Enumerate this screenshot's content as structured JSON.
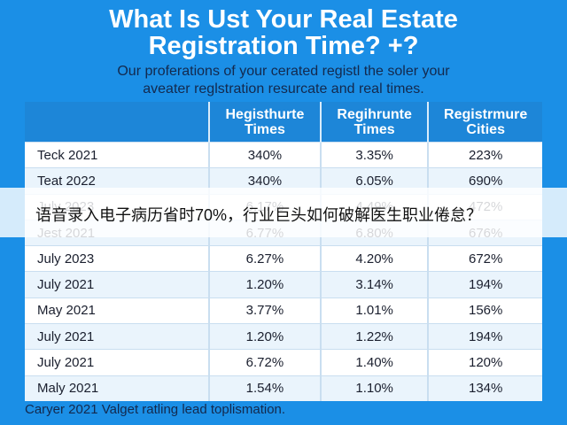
{
  "header": {
    "title": [
      "What Is Ust Your Real Estate",
      "Registration Time? +?"
    ],
    "subtitle": [
      "Our proferations of your cerated registl the soler your",
      "aveater reglstration resurcate and real times."
    ]
  },
  "table": {
    "columns": [
      "",
      "Hegisthurte Times",
      "Regihrunte Times",
      "Registrmure Cities"
    ],
    "rows": [
      [
        "Teck 2021",
        "340%",
        "3.35%",
        "223%"
      ],
      [
        "Teat 2022",
        "340%",
        "6.05%",
        "690%"
      ],
      [
        "July 2023",
        "6.17%",
        "4.49%",
        "472%"
      ],
      [
        "Jest 2021",
        "6.77%",
        "6.80%",
        "676%"
      ],
      [
        "July 2023",
        "6.27%",
        "4.20%",
        "672%"
      ],
      [
        "July 2021",
        "1.20%",
        "3.14%",
        "194%"
      ],
      [
        "May 2021",
        "3.77%",
        "1.01%",
        "156%"
      ],
      [
        "July 2021",
        "1.20%",
        "1.22%",
        "194%"
      ],
      [
        "July 2021",
        "6.72%",
        "1.40%",
        "120%"
      ],
      [
        "Maly 2021",
        "1.54%",
        "1.10%",
        "134%"
      ]
    ]
  },
  "footer": "Caryer 2021 Valget ratling lead toplismation.",
  "banner": "语音录入电子病历省时70%，行业巨头如何破解医生职业倦怠？"
}
